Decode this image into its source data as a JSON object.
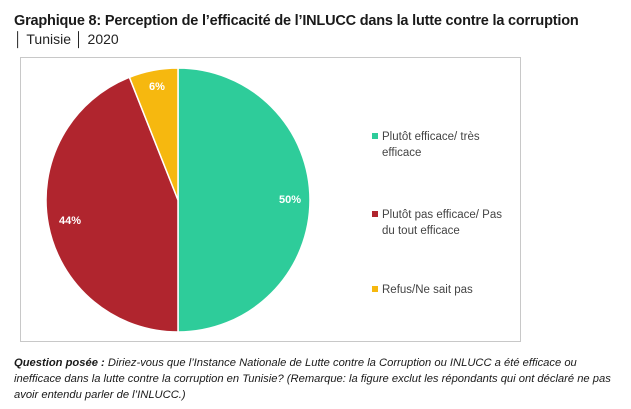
{
  "header": {
    "title": "Graphique 8: Perception de l’efficacité de l’INLUCC dans la lutte contre la corruption",
    "subtitle": "│ Tunisie │ 2020"
  },
  "chart_data": {
    "type": "pie",
    "title": "",
    "legend_position": "right",
    "slices": [
      {
        "label": "Plutôt efficace/ très efficace",
        "value": 50,
        "display": "50%",
        "color": "#2ECC9A"
      },
      {
        "label": "Plutôt pas efficace/ Pas du tout efficace",
        "value": 44,
        "display": "44%",
        "color": "#B0252E"
      },
      {
        "label": "Refus/Ne sait pas",
        "value": 6,
        "display": "6%",
        "color": "#F6B80F"
      }
    ]
  },
  "footnote": {
    "label": "Question posée :",
    "text": "Diriez-vous que l’Instance Nationale de Lutte contre la Corruption ou INLUCC a été efficace ou inefficace dans la lutte contre la corruption en Tunisie? (Remarque: la figure exclut les répondants qui ont déclaré ne pas avoir entendu parler de l’INLUCC.)"
  }
}
